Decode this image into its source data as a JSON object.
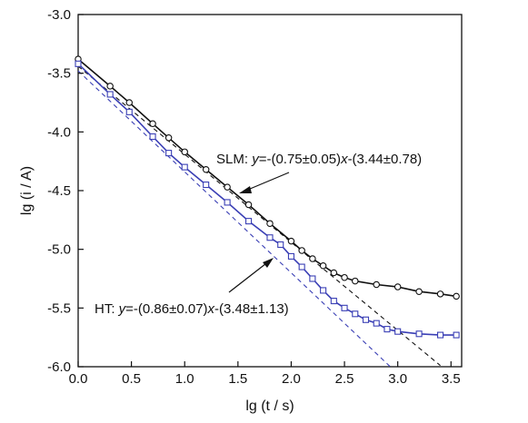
{
  "chart_data": {
    "type": "scatter",
    "xlabel": "lg (t / s)",
    "ylabel": "lg (i / A)",
    "xlim": [
      0.0,
      3.6
    ],
    "ylim": [
      -6.0,
      -3.0
    ],
    "xticks": [
      "0.0",
      "0.5",
      "1.0",
      "1.5",
      "2.0",
      "2.5",
      "3.0",
      "3.5"
    ],
    "yticks": [
      "-3.0",
      "-3.5",
      "-4.0",
      "-4.5",
      "-5.0",
      "-5.5",
      "-6.0"
    ],
    "grid": false,
    "series": [
      {
        "name": "SLM",
        "color": "#111111",
        "marker": "circle",
        "points": [
          [
            0.0,
            -3.38
          ],
          [
            0.3,
            -3.61
          ],
          [
            0.48,
            -3.75
          ],
          [
            0.7,
            -3.93
          ],
          [
            0.85,
            -4.05
          ],
          [
            1.0,
            -4.17
          ],
          [
            1.2,
            -4.32
          ],
          [
            1.4,
            -4.47
          ],
          [
            1.6,
            -4.62
          ],
          [
            1.8,
            -4.78
          ],
          [
            2.0,
            -4.93
          ],
          [
            2.1,
            -5.01
          ],
          [
            2.2,
            -5.08
          ],
          [
            2.3,
            -5.14
          ],
          [
            2.4,
            -5.2
          ],
          [
            2.5,
            -5.24
          ],
          [
            2.6,
            -5.27
          ],
          [
            2.8,
            -5.3
          ],
          [
            3.0,
            -5.32
          ],
          [
            3.2,
            -5.36
          ],
          [
            3.4,
            -5.38
          ],
          [
            3.55,
            -5.4
          ]
        ],
        "fit_label_prefix": "SLM: ",
        "fit_y": "y",
        "fit_eq": "=-(0.75±0.05)",
        "fit_x": "x",
        "fit_eq2": "-(3.44±0.78)",
        "fit_line": [
          [
            0.0,
            -3.44
          ],
          [
            3.4,
            -5.99
          ]
        ]
      },
      {
        "name": "HT",
        "color": "#3a3fb5",
        "marker": "square",
        "points": [
          [
            0.0,
            -3.42
          ],
          [
            0.3,
            -3.68
          ],
          [
            0.48,
            -3.83
          ],
          [
            0.7,
            -4.04
          ],
          [
            0.85,
            -4.18
          ],
          [
            1.0,
            -4.3
          ],
          [
            1.2,
            -4.45
          ],
          [
            1.4,
            -4.6
          ],
          [
            1.6,
            -4.76
          ],
          [
            1.8,
            -4.9
          ],
          [
            1.9,
            -4.96
          ],
          [
            2.0,
            -5.06
          ],
          [
            2.1,
            -5.15
          ],
          [
            2.2,
            -5.25
          ],
          [
            2.3,
            -5.35
          ],
          [
            2.4,
            -5.44
          ],
          [
            2.5,
            -5.5
          ],
          [
            2.6,
            -5.55
          ],
          [
            2.7,
            -5.6
          ],
          [
            2.8,
            -5.63
          ],
          [
            2.9,
            -5.68
          ],
          [
            3.0,
            -5.7
          ],
          [
            3.2,
            -5.72
          ],
          [
            3.4,
            -5.73
          ],
          [
            3.55,
            -5.73
          ]
        ],
        "fit_label_prefix": "HT: ",
        "fit_y": "y",
        "fit_eq": "=-(0.86±0.07)",
        "fit_x": "x",
        "fit_eq2": "-(3.48±1.13)",
        "fit_line": [
          [
            0.0,
            -3.48
          ],
          [
            2.93,
            -6.0
          ]
        ]
      }
    ]
  }
}
